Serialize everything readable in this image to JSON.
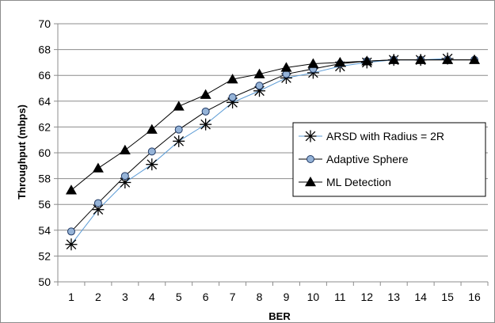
{
  "chart_data": {
    "type": "line",
    "title": "",
    "xlabel": "BER",
    "ylabel": "Throughput (mbps)",
    "x": [
      1,
      2,
      3,
      4,
      5,
      6,
      7,
      8,
      9,
      10,
      11,
      12,
      13,
      14,
      15,
      16
    ],
    "ylim": [
      50,
      70
    ],
    "ytick_step": 2,
    "grid": true,
    "legend_position": "right",
    "series": [
      {
        "name": "ARSD with Radius = 2R",
        "marker": "asterisk",
        "color": "#5b9bd5",
        "marker_color": "#000000",
        "values": [
          52.9,
          55.6,
          57.7,
          59.1,
          60.9,
          62.2,
          63.9,
          64.8,
          65.8,
          66.2,
          66.7,
          67.0,
          67.2,
          67.2,
          67.3,
          null
        ]
      },
      {
        "name": "Adaptive Sphere",
        "marker": "circle",
        "color": "#000000",
        "marker_color": "#95b3d7",
        "values": [
          53.9,
          56.1,
          58.2,
          60.1,
          61.8,
          63.2,
          64.3,
          65.2,
          66.1,
          66.5,
          66.9,
          67.1,
          67.2,
          67.2,
          67.2,
          67.2
        ]
      },
      {
        "name": "ML Detection",
        "marker": "triangle",
        "color": "#000000",
        "marker_color": "#000000",
        "values": [
          57.1,
          58.8,
          60.2,
          61.8,
          63.6,
          64.5,
          65.7,
          66.1,
          66.6,
          66.9,
          67.0,
          67.1,
          67.2,
          67.2,
          67.2,
          67.2
        ]
      }
    ]
  }
}
